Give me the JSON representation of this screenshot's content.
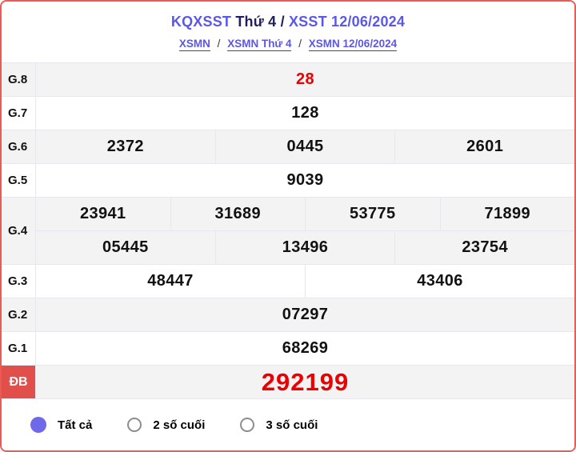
{
  "header": {
    "title": {
      "left": "KQXSST",
      "mid": " Thứ 4 / ",
      "right": "XSST 12/06/2024"
    },
    "breadcrumb": {
      "separator": "/",
      "links": [
        "XSMN",
        "XSMN Thứ 4",
        "XSMN 12/06/2024"
      ]
    }
  },
  "results": {
    "rows": [
      {
        "label": "G.8",
        "cells": [
          "28"
        ]
      },
      {
        "label": "G.7",
        "cells": [
          "128"
        ]
      },
      {
        "label": "G.6",
        "cells": [
          "2372",
          "0445",
          "2601"
        ]
      },
      {
        "label": "G.5",
        "cells": [
          "9039"
        ]
      },
      {
        "label": "G.4",
        "row1": [
          "23941",
          "31689",
          "53775",
          "71899"
        ],
        "row2": [
          "05445",
          "13496",
          "23754"
        ]
      },
      {
        "label": "G.3",
        "cells": [
          "48447",
          "43406"
        ]
      },
      {
        "label": "G.2",
        "cells": [
          "07297"
        ]
      },
      {
        "label": "G.1",
        "cells": [
          "68269"
        ]
      },
      {
        "label": "ĐB",
        "cells": [
          "292199"
        ]
      }
    ]
  },
  "filters": [
    {
      "label": "Tất cả",
      "selected": true
    },
    {
      "label": "2 số cuối",
      "selected": false
    },
    {
      "label": "3 số cuối",
      "selected": false
    }
  ],
  "colors": {
    "accent_purple": "#5b58e8",
    "title_dark_navy": "#20205e",
    "value_red": "#ea0000",
    "db_label_bg": "#e04f4a",
    "card_border_red": "#ec5a55",
    "row_alt_bg": "#f3f3f4",
    "radio_selected_fill": "#6f68e8"
  }
}
